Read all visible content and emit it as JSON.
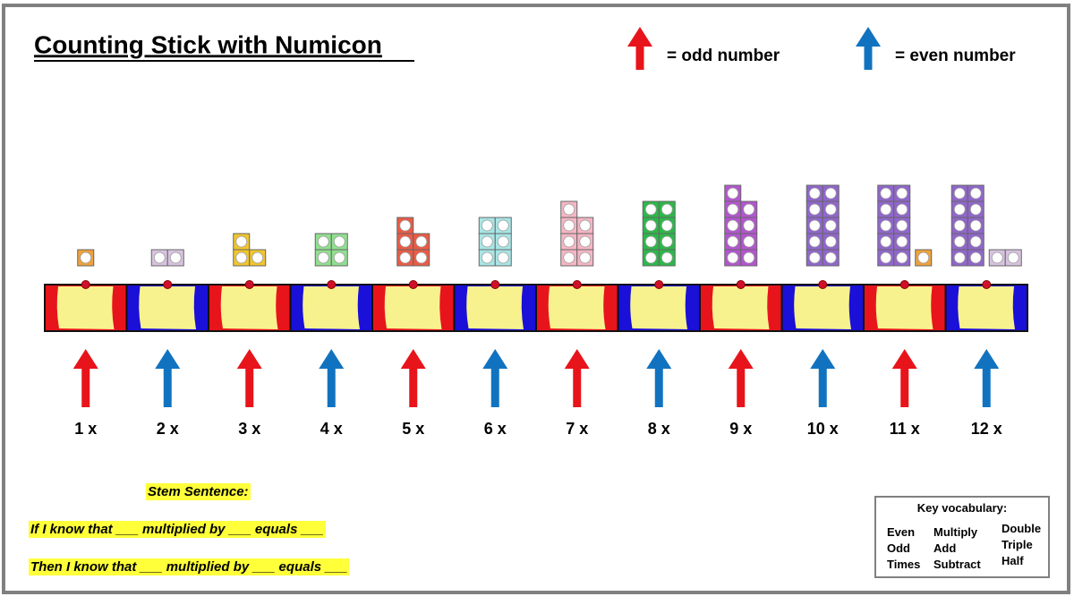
{
  "title": "Counting Stick with Numicon",
  "legend": [
    {
      "label": "= odd number",
      "color": "#e8141b"
    },
    {
      "label": "= even number",
      "color": "#1173c0"
    }
  ],
  "stick": [
    {
      "label": "1 x",
      "color": "#e8141b",
      "pieces": [
        {
          "value": 1,
          "color": "#f0a23a"
        }
      ]
    },
    {
      "label": "2 x",
      "color": "#1a10d8",
      "pieces": [
        {
          "value": 2,
          "color": "#d7c3e0"
        }
      ]
    },
    {
      "label": "3 x",
      "color": "#e8141b",
      "pieces": [
        {
          "value": 3,
          "color": "#f2c62c"
        }
      ]
    },
    {
      "label": "4 x",
      "color": "#1a10d8",
      "pieces": [
        {
          "value": 4,
          "color": "#8fe08f"
        }
      ]
    },
    {
      "label": "5 x",
      "color": "#e8141b",
      "pieces": [
        {
          "value": 5,
          "color": "#ec5a45"
        }
      ]
    },
    {
      "label": "6 x",
      "color": "#1a10d8",
      "pieces": [
        {
          "value": 6,
          "color": "#a8e6e6"
        }
      ]
    },
    {
      "label": "7 x",
      "color": "#e8141b",
      "pieces": [
        {
          "value": 7,
          "color": "#f6b6c4"
        }
      ]
    },
    {
      "label": "8 x",
      "color": "#1a10d8",
      "pieces": [
        {
          "value": 8,
          "color": "#2cb84a"
        }
      ]
    },
    {
      "label": "9 x",
      "color": "#e8141b",
      "pieces": [
        {
          "value": 9,
          "color": "#b455d0"
        }
      ]
    },
    {
      "label": "10 x",
      "color": "#1a10d8",
      "pieces": [
        {
          "value": 10,
          "color": "#9066cc"
        }
      ]
    },
    {
      "label": "11 x",
      "color": "#e8141b",
      "pieces": [
        {
          "value": 10,
          "color": "#9066cc"
        },
        {
          "value": 1,
          "color": "#f0a23a"
        }
      ]
    },
    {
      "label": "12 x",
      "color": "#1a10d8",
      "pieces": [
        {
          "value": 10,
          "color": "#9066cc"
        },
        {
          "value": 2,
          "color": "#d7c3e0"
        }
      ]
    }
  ],
  "stem": {
    "heading": "Stem Sentence:",
    "lines": [
      "If I know that ___ multiplied by ___ equals ___",
      "Then I know that ___ multiplied by ___ equals ___"
    ]
  },
  "vocabulary": {
    "heading": "Key vocabulary:",
    "columns": [
      [
        "Even",
        "Odd",
        "Times"
      ],
      [
        "Multiply",
        "Add",
        "Subtract"
      ],
      [
        "Double",
        "Triple",
        "Half"
      ]
    ]
  }
}
